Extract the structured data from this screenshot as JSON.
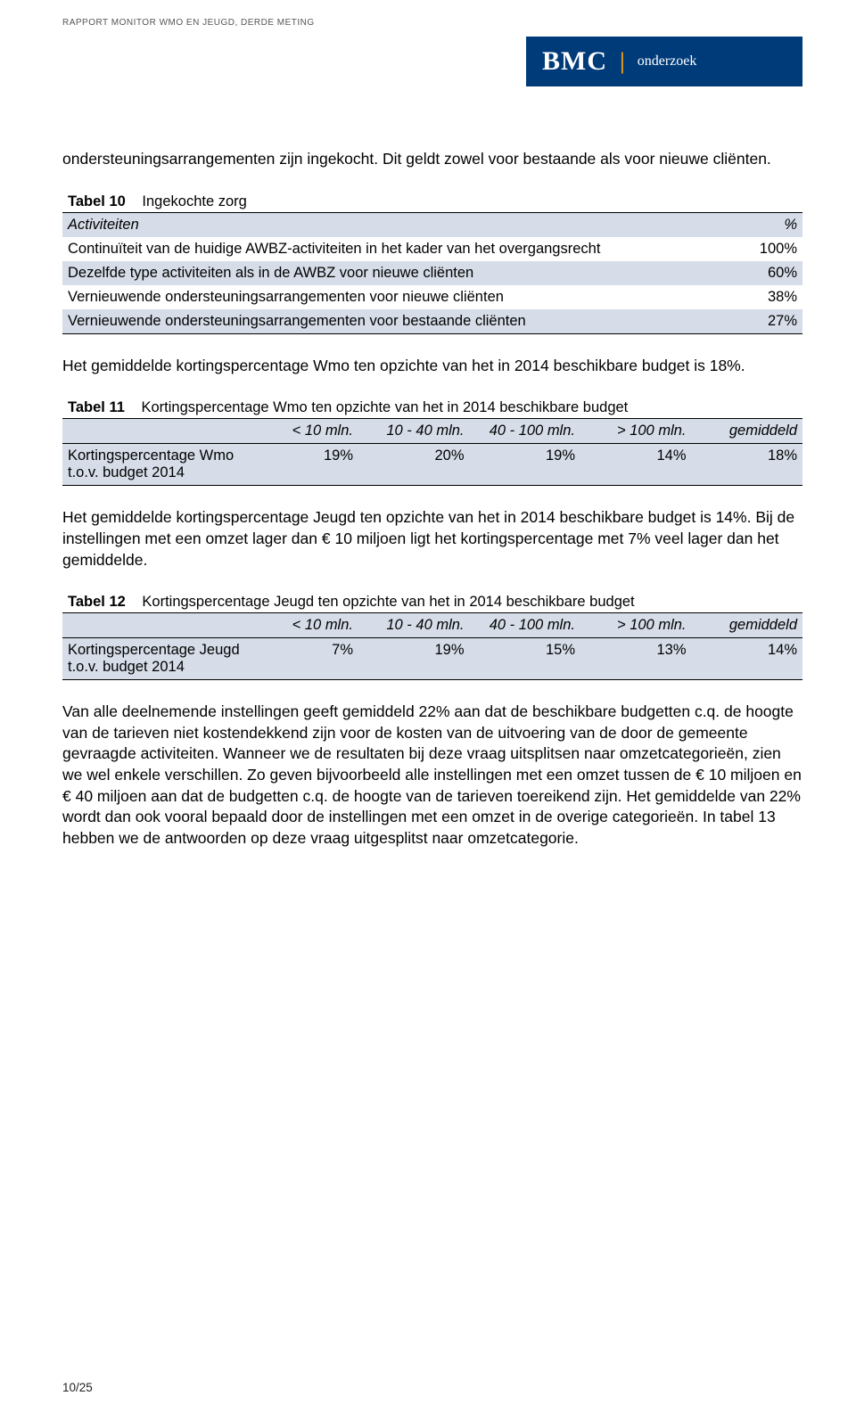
{
  "runningHead": "RAPPORT MONITOR WMO EN JEUGD, DERDE METING",
  "logo": {
    "main": "BMC",
    "sep": "|",
    "sub": "onderzoek"
  },
  "para1": "ondersteuningsarrangementen zijn ingekocht. Dit geldt zowel voor bestaande als voor nieuwe cliënten.",
  "table10": {
    "label": "Tabel 10",
    "title": "Ingekochte zorg",
    "headLeft": "Activiteiten",
    "headRight": "%",
    "rows": [
      {
        "label": "Continuïteit van de huidige AWBZ-activiteiten in het kader van het overgangsrecht",
        "val": "100%",
        "alt": false
      },
      {
        "label": "Dezelfde type activiteiten als in de AWBZ voor nieuwe cliënten",
        "val": "60%",
        "alt": true
      },
      {
        "label": "Vernieuwende ondersteuningsarrangementen voor nieuwe cliënten",
        "val": "38%",
        "alt": false
      },
      {
        "label": "Vernieuwende ondersteuningsarrangementen voor bestaande cliënten",
        "val": "27%",
        "alt": true
      }
    ]
  },
  "para2": "Het gemiddelde kortingspercentage Wmo ten opzichte van het in 2014 beschikbare budget is 18%.",
  "table11": {
    "label": "Tabel 11",
    "title": "Kortingspercentage Wmo ten opzichte van het in 2014 beschikbare budget",
    "cols": [
      "",
      "< 10 mln.",
      "10 - 40 mln.",
      "40 - 100 mln.",
      "> 100 mln.",
      "gemiddeld"
    ],
    "row": {
      "label": "Kortingspercentage Wmo t.o.v. budget 2014",
      "vals": [
        "19%",
        "20%",
        "19%",
        "14%",
        "18%"
      ]
    }
  },
  "para3": "Het gemiddelde kortingspercentage Jeugd ten opzichte van het in 2014 beschikbare budget is 14%. Bij de instellingen met een omzet lager dan € 10 miljoen ligt het kortingspercentage met 7% veel lager dan het gemiddelde.",
  "table12": {
    "label": "Tabel 12",
    "title": "Kortingspercentage Jeugd ten opzichte van het in 2014 beschikbare budget",
    "cols": [
      "",
      "< 10 mln.",
      "10 - 40 mln.",
      "40 - 100 mln.",
      "> 100 mln.",
      "gemiddeld"
    ],
    "row": {
      "label": "Kortingspercentage Jeugd t.o.v. budget 2014",
      "vals": [
        "7%",
        "19%",
        "15%",
        "13%",
        "14%"
      ]
    }
  },
  "para4": "Van alle deelnemende instellingen geeft gemiddeld 22% aan dat de beschikbare budgetten c.q. de hoogte van de tarieven niet kostendekkend zijn voor de kosten van de uitvoering van de door de gemeente gevraagde activiteiten. Wanneer we de resultaten bij deze vraag uitsplitsen naar omzetcategorieën, zien we wel enkele verschillen. Zo geven bijvoorbeeld alle instellingen met een omzet tussen de € 10 miljoen en € 40 miljoen aan dat de budgetten c.q. de hoogte van de tarieven toereikend zijn. Het gemiddelde van 22% wordt dan ook vooral bepaald door de instellingen met een omzet in de overige categorieën. In tabel 13 hebben we de antwoorden op deze vraag uitgesplitst naar omzetcategorie.",
  "pageNum": "10/25",
  "colors": {
    "logoBg": "#003b79",
    "accent": "#f39c12",
    "tableShade": "#d6dde8"
  }
}
